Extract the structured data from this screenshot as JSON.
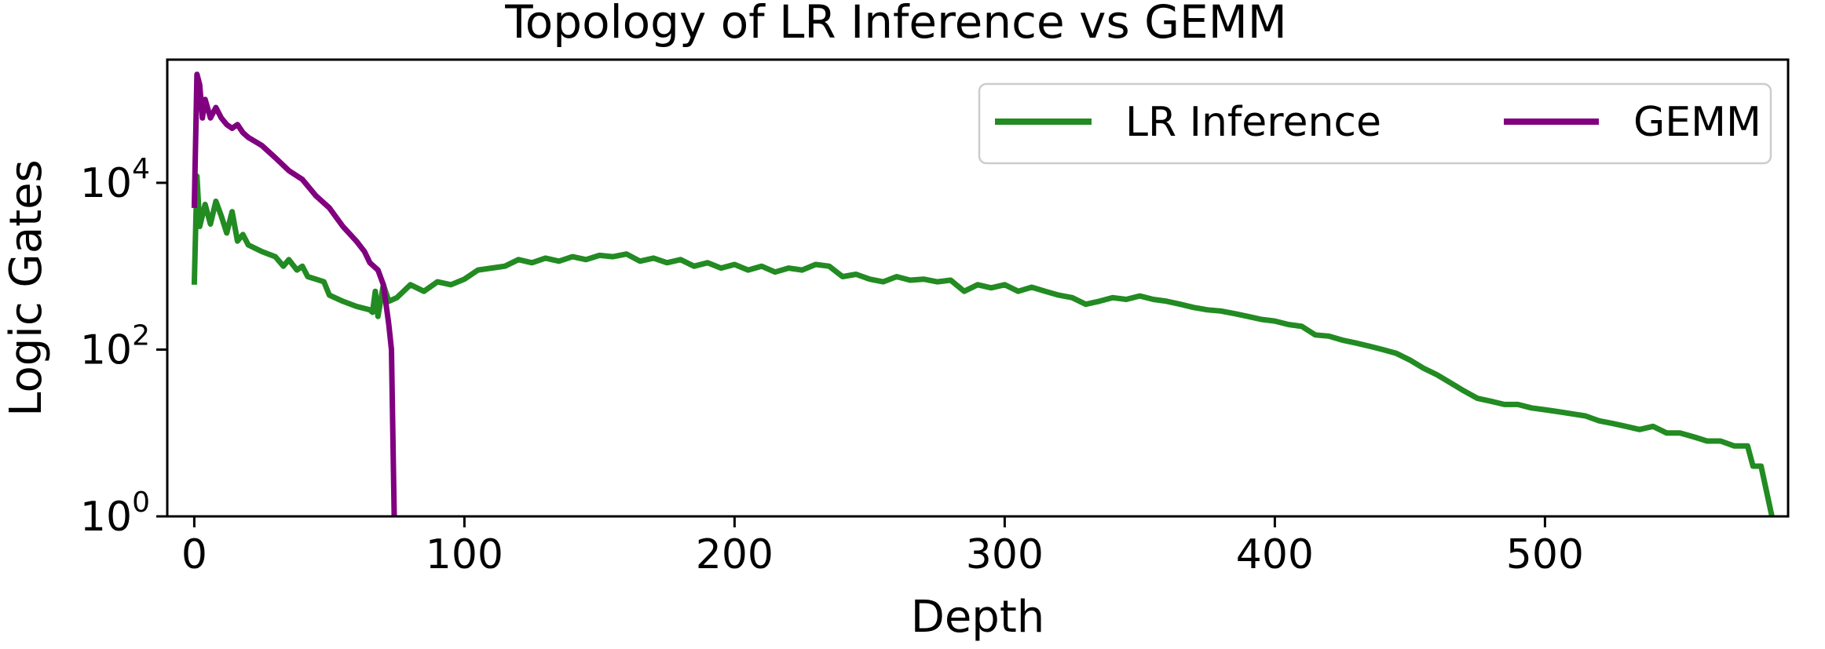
{
  "chart_data": {
    "type": "line",
    "title": "Topology of LR Inference vs GEMM",
    "xlabel": "Depth",
    "ylabel": "Logic Gates",
    "xlim": [
      -10,
      590
    ],
    "ylim": [
      1,
      300000
    ],
    "yscale": "log",
    "grid": false,
    "legend_position": "top-right",
    "x_ticks": [
      0,
      100,
      200,
      300,
      400,
      500
    ],
    "y_ticks": [
      {
        "value": 1,
        "base": "10",
        "exp": "0"
      },
      {
        "value": 100,
        "base": "10",
        "exp": "2"
      },
      {
        "value": 10000,
        "base": "10",
        "exp": "4"
      }
    ],
    "series": [
      {
        "name": "LR Inference",
        "color": "#228b22",
        "points": [
          [
            0,
            600
          ],
          [
            1,
            12000
          ],
          [
            2,
            3000
          ],
          [
            4,
            5500
          ],
          [
            6,
            3200
          ],
          [
            8,
            6000
          ],
          [
            10,
            4000
          ],
          [
            12,
            2500
          ],
          [
            14,
            4500
          ],
          [
            16,
            2000
          ],
          [
            18,
            2400
          ],
          [
            20,
            1800
          ],
          [
            25,
            1500
          ],
          [
            30,
            1300
          ],
          [
            33,
            1000
          ],
          [
            35,
            1200
          ],
          [
            38,
            900
          ],
          [
            40,
            1000
          ],
          [
            42,
            750
          ],
          [
            45,
            700
          ],
          [
            48,
            650
          ],
          [
            50,
            450
          ],
          [
            55,
            380
          ],
          [
            60,
            330
          ],
          [
            65,
            300
          ],
          [
            66,
            280
          ],
          [
            67,
            500
          ],
          [
            68,
            250
          ],
          [
            70,
            600
          ],
          [
            72,
            380
          ],
          [
            75,
            420
          ],
          [
            80,
            600
          ],
          [
            85,
            500
          ],
          [
            90,
            650
          ],
          [
            95,
            600
          ],
          [
            100,
            700
          ],
          [
            105,
            900
          ],
          [
            110,
            950
          ],
          [
            115,
            1000
          ],
          [
            120,
            1200
          ],
          [
            125,
            1100
          ],
          [
            130,
            1250
          ],
          [
            135,
            1150
          ],
          [
            140,
            1300
          ],
          [
            145,
            1200
          ],
          [
            150,
            1350
          ],
          [
            155,
            1300
          ],
          [
            160,
            1400
          ],
          [
            165,
            1150
          ],
          [
            170,
            1250
          ],
          [
            175,
            1100
          ],
          [
            180,
            1200
          ],
          [
            185,
            1000
          ],
          [
            190,
            1100
          ],
          [
            195,
            950
          ],
          [
            200,
            1050
          ],
          [
            205,
            900
          ],
          [
            210,
            1000
          ],
          [
            215,
            850
          ],
          [
            220,
            950
          ],
          [
            225,
            900
          ],
          [
            230,
            1050
          ],
          [
            235,
            1000
          ],
          [
            240,
            750
          ],
          [
            245,
            800
          ],
          [
            250,
            700
          ],
          [
            255,
            650
          ],
          [
            260,
            750
          ],
          [
            265,
            680
          ],
          [
            270,
            700
          ],
          [
            275,
            650
          ],
          [
            280,
            680
          ],
          [
            285,
            500
          ],
          [
            290,
            600
          ],
          [
            295,
            550
          ],
          [
            300,
            600
          ],
          [
            305,
            500
          ],
          [
            310,
            560
          ],
          [
            315,
            500
          ],
          [
            320,
            450
          ],
          [
            325,
            420
          ],
          [
            330,
            350
          ],
          [
            335,
            380
          ],
          [
            340,
            420
          ],
          [
            345,
            400
          ],
          [
            350,
            440
          ],
          [
            355,
            400
          ],
          [
            360,
            380
          ],
          [
            365,
            350
          ],
          [
            370,
            320
          ],
          [
            375,
            300
          ],
          [
            380,
            290
          ],
          [
            385,
            270
          ],
          [
            390,
            250
          ],
          [
            395,
            230
          ],
          [
            400,
            220
          ],
          [
            405,
            200
          ],
          [
            410,
            190
          ],
          [
            415,
            150
          ],
          [
            420,
            145
          ],
          [
            425,
            130
          ],
          [
            430,
            120
          ],
          [
            435,
            110
          ],
          [
            440,
            100
          ],
          [
            445,
            90
          ],
          [
            450,
            75
          ],
          [
            455,
            60
          ],
          [
            460,
            50
          ],
          [
            465,
            40
          ],
          [
            470,
            32
          ],
          [
            475,
            26
          ],
          [
            480,
            24
          ],
          [
            485,
            22
          ],
          [
            490,
            22
          ],
          [
            495,
            20
          ],
          [
            500,
            19
          ],
          [
            505,
            18
          ],
          [
            510,
            17
          ],
          [
            515,
            16
          ],
          [
            520,
            14
          ],
          [
            525,
            13
          ],
          [
            530,
            12
          ],
          [
            535,
            11
          ],
          [
            540,
            12
          ],
          [
            545,
            10
          ],
          [
            550,
            10
          ],
          [
            555,
            9
          ],
          [
            560,
            8
          ],
          [
            565,
            8
          ],
          [
            570,
            7
          ],
          [
            575,
            7
          ],
          [
            577,
            4
          ],
          [
            580,
            4
          ],
          [
            582,
            2
          ],
          [
            584,
            1
          ]
        ]
      },
      {
        "name": "GEMM",
        "color": "#800080",
        "points": [
          [
            0,
            5000
          ],
          [
            1,
            200000
          ],
          [
            2,
            150000
          ],
          [
            3,
            60000
          ],
          [
            4,
            100000
          ],
          [
            6,
            60000
          ],
          [
            8,
            80000
          ],
          [
            10,
            60000
          ],
          [
            12,
            50000
          ],
          [
            14,
            45000
          ],
          [
            16,
            50000
          ],
          [
            18,
            40000
          ],
          [
            20,
            35000
          ],
          [
            25,
            28000
          ],
          [
            30,
            20000
          ],
          [
            35,
            14000
          ],
          [
            40,
            11000
          ],
          [
            45,
            7000
          ],
          [
            50,
            5000
          ],
          [
            55,
            3000
          ],
          [
            60,
            2000
          ],
          [
            63,
            1500
          ],
          [
            65,
            1100
          ],
          [
            68,
            900
          ],
          [
            70,
            600
          ],
          [
            72,
            200
          ],
          [
            73,
            100
          ],
          [
            74,
            1
          ]
        ]
      }
    ]
  }
}
